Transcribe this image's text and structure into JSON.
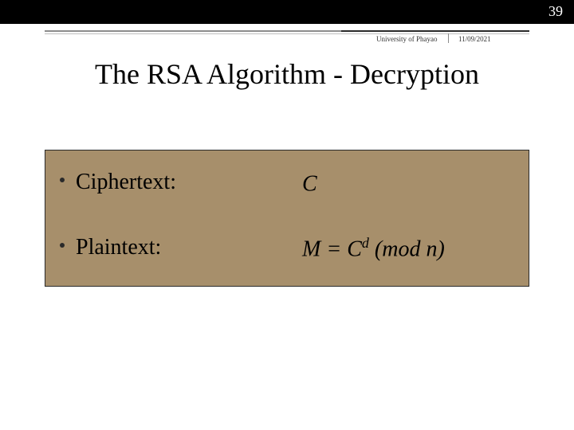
{
  "page_number": "39",
  "meta": {
    "org": "University of Phayao",
    "date": "11/09/2021"
  },
  "title": "The RSA Algorithm - Decryption",
  "rows": [
    {
      "label": "Ciphertext:",
      "value_prefix": "C",
      "value_sup": "",
      "value_suffix": ""
    },
    {
      "label": "Plaintext:",
      "value_prefix": "M = C",
      "value_sup": "d",
      "value_suffix": " (mod n)"
    }
  ],
  "colors": {
    "top_bar": "#000000",
    "box_bg": "#a78f6b",
    "box_border": "#2a2a2a",
    "text": "#000000",
    "meta_text": "#333333",
    "line_light": "#8c8c8c",
    "line_dark": "#2a2a2a"
  }
}
